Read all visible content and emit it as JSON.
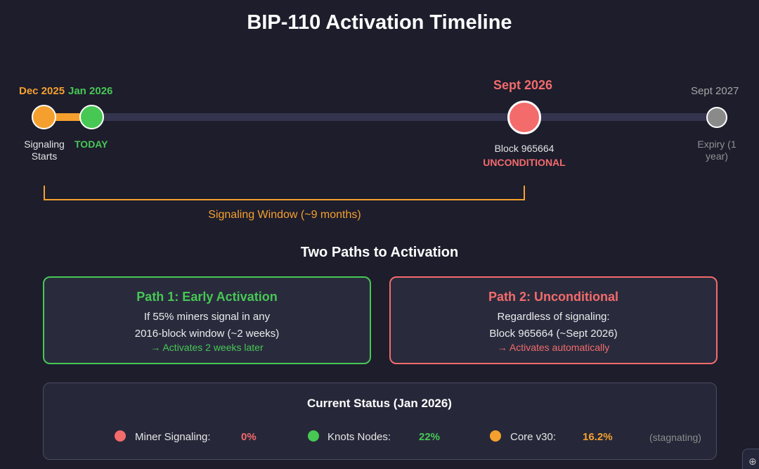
{
  "title": "BIP-110 Activation Timeline",
  "timeline": {
    "milestones": [
      {
        "date": "Dec 2025",
        "label": "Signaling Starts",
        "color": "#f5a02e"
      },
      {
        "date": "Jan 2026",
        "label": "TODAY",
        "color": "#47c754"
      },
      {
        "date": "Sept 2026",
        "label": "Block 965664",
        "sublabel": "UNCONDITIONAL",
        "color": "#f36b6b"
      },
      {
        "date": "Sept 2027",
        "label": "Expiry (1 year)",
        "color": "#8a8a8a"
      }
    ],
    "window_label": "Signaling Window (~9 months)"
  },
  "paths": {
    "section_title": "Two Paths to Activation",
    "items": [
      {
        "title": "Path 1: Early Activation",
        "line1": "If 55% miners signal in any",
        "line2": "2016-block window (~2 weeks)",
        "note": "→ Activates 2 weeks later",
        "color": "#47c754"
      },
      {
        "title": "Path 2: Unconditional",
        "line1": "Regardless of signaling:",
        "line2": "Block 965664 (~Sept 2026)",
        "note": "→ Activates automatically",
        "color": "#f36b6b"
      }
    ]
  },
  "status": {
    "title": "Current Status (Jan 2026)",
    "items": [
      {
        "label": "Miner Signaling:",
        "value": "0%",
        "color": "#f36b6b"
      },
      {
        "label": "Knots Nodes:",
        "value": "22%",
        "color": "#47c754"
      },
      {
        "label": "Core v30:",
        "value": "16.2%",
        "color": "#f5a02e"
      }
    ],
    "note": "(stagnating)"
  },
  "corner_button": {
    "icon": "zoom-in-icon",
    "glyph": "⊕"
  }
}
